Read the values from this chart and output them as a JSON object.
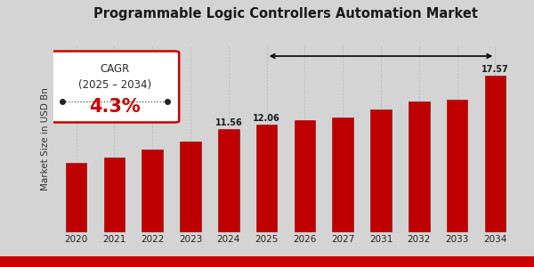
{
  "title": "Programmable Logic Controllers Automation Market",
  "ylabel": "Market Size in USD Bn",
  "categories": [
    "2020",
    "2021",
    "2022",
    "2023",
    "2024",
    "2025",
    "2026",
    "2027",
    "2031",
    "2032",
    "2033",
    "2034"
  ],
  "values": [
    7.8,
    8.4,
    9.3,
    10.2,
    11.56,
    12.06,
    12.6,
    12.9,
    13.8,
    14.7,
    14.9,
    17.57
  ],
  "bar_color": "#be0000",
  "bar_edge_color": "#900000",
  "background_color": "#d4d4d4",
  "title_fontsize": 10.5,
  "annotated_bars": {
    "2024": "11.56",
    "2025": "12.06",
    "2034": "17.57"
  },
  "cagr_text_line1": "CAGR",
  "cagr_text_line2": "(2025 – 2034)",
  "cagr_value": "4.3%",
  "ylim": [
    0,
    21
  ],
  "bottom_bar_color": "#cc0000",
  "arrow_line_color": "#111111",
  "cagr_box_edge_color": "#cc0000",
  "dot_line_color": "#444444",
  "vline_color": "#bbbbbb"
}
